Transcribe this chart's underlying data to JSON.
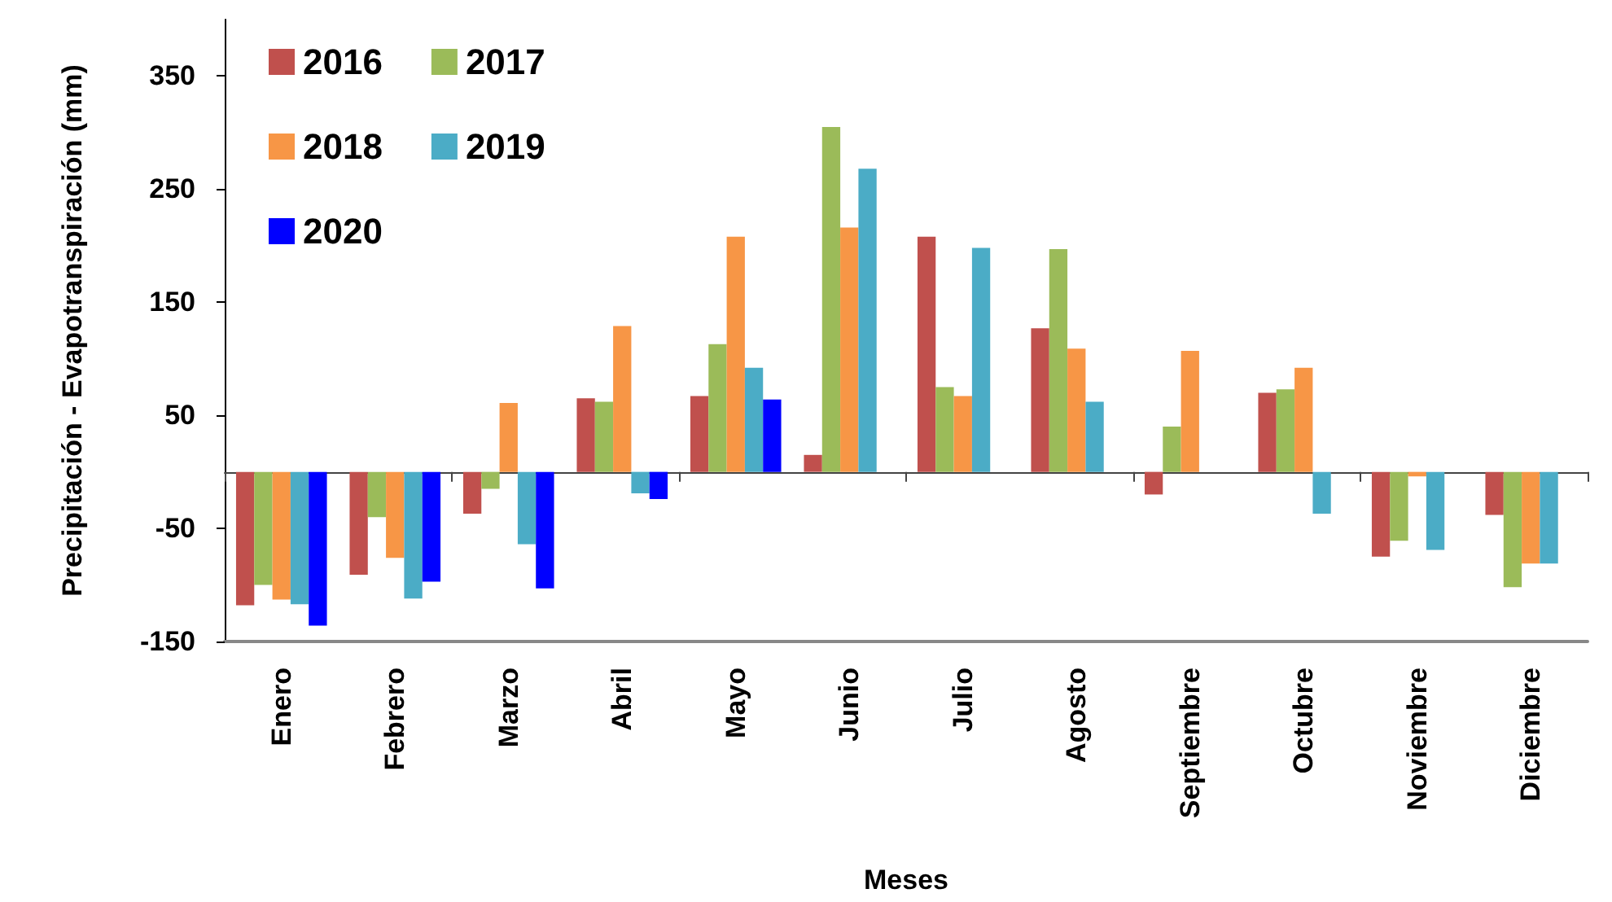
{
  "chart_data": {
    "type": "bar",
    "xlabel": "Meses",
    "ylabel": "Precipitación - Evapotranspiración (mm)",
    "categories": [
      "Enero",
      "Febrero",
      "Marzo",
      "Abril",
      "Mayo",
      "Junio",
      "Julio",
      "Agosto",
      "Septiembre",
      "Octubre",
      "Noviembre",
      "Diciembre"
    ],
    "series": [
      {
        "name": "2016",
        "color": "#c0504d",
        "values": [
          -118,
          -91,
          -37,
          65,
          67,
          15,
          208,
          127,
          -20,
          70,
          -75,
          -38
        ]
      },
      {
        "name": "2017",
        "color": "#9bbb59",
        "values": [
          -100,
          -40,
          -15,
          62,
          113,
          305,
          75,
          197,
          40,
          73,
          -61,
          -102
        ]
      },
      {
        "name": "2018",
        "color": "#f79646",
        "values": [
          -113,
          -76,
          61,
          129,
          208,
          216,
          67,
          109,
          107,
          92,
          -4,
          -81
        ]
      },
      {
        "name": "2019",
        "color": "#4bacc6",
        "values": [
          -117,
          -112,
          -64,
          -19,
          92,
          268,
          198,
          62,
          null,
          -37,
          -69,
          -81
        ]
      },
      {
        "name": "2020",
        "color": "#0000ff",
        "values": [
          -136,
          -97,
          -103,
          -24,
          64,
          null,
          null,
          null,
          null,
          null,
          null,
          null
        ]
      }
    ],
    "ylim": [
      -150,
      400
    ],
    "yticks": [
      -150,
      -50,
      50,
      150,
      250,
      350
    ],
    "grid": false,
    "legend": "top left"
  }
}
